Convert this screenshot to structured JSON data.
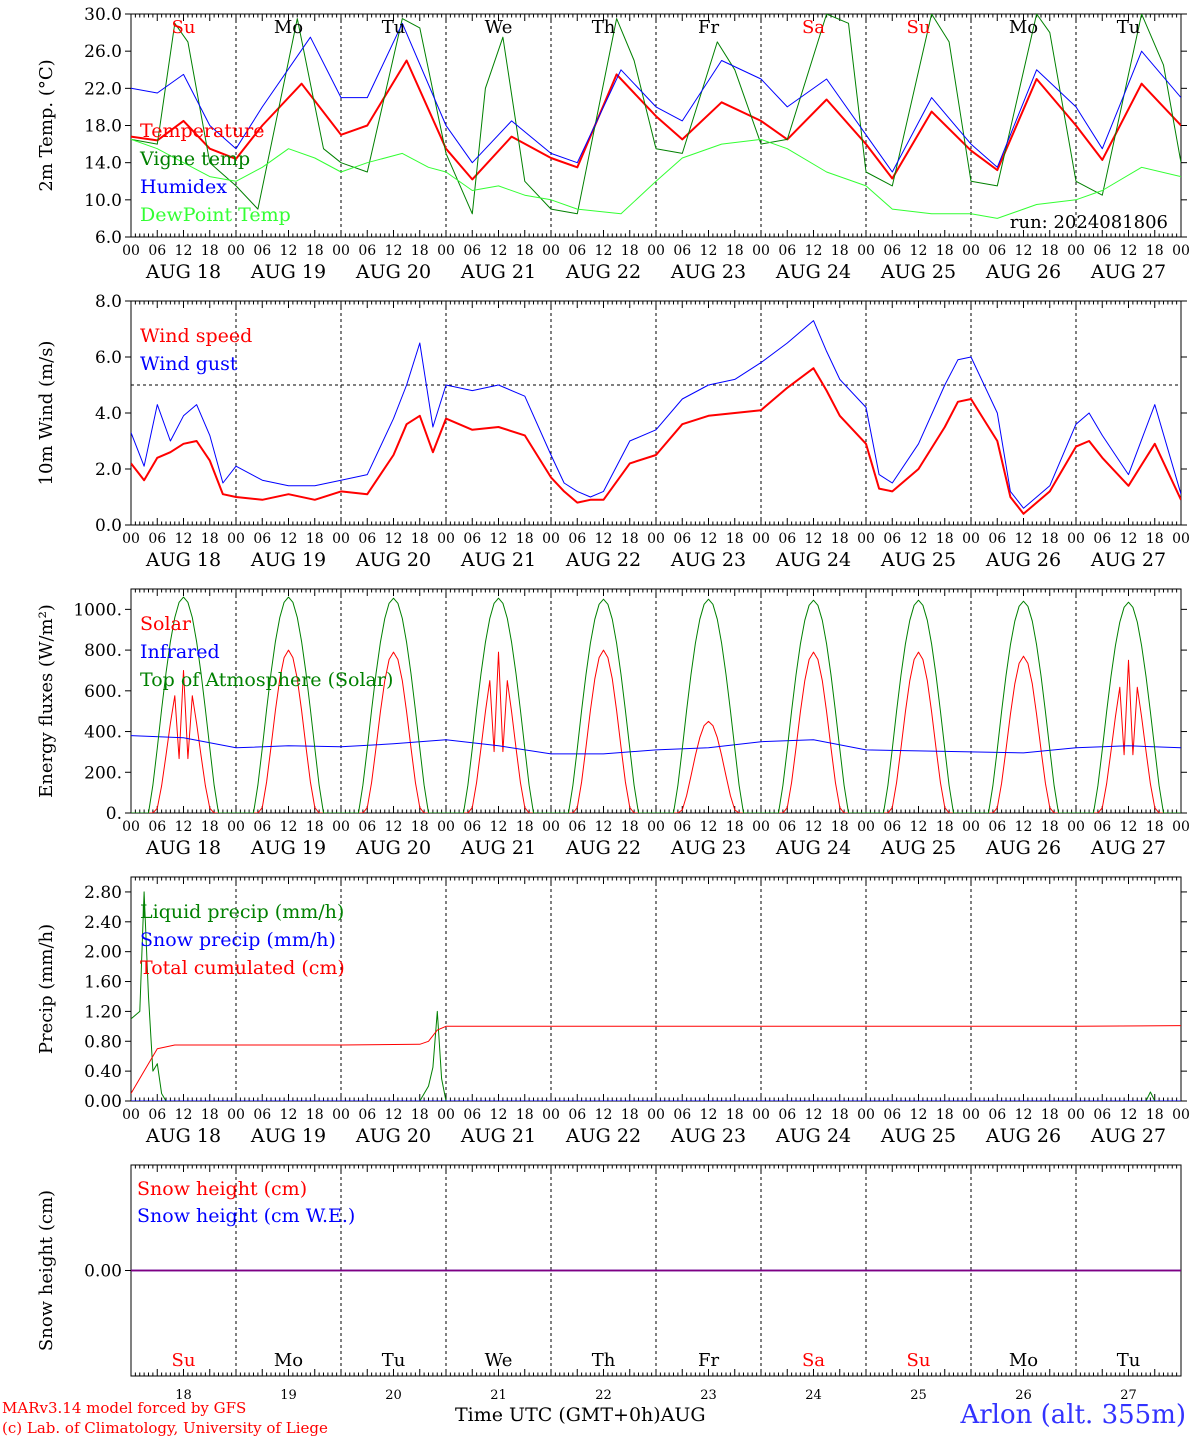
{
  "days": [
    "AUG 18",
    "AUG 19",
    "AUG 20",
    "AUG 21",
    "AUG 22",
    "AUG 23",
    "AUG 24",
    "AUG 25",
    "AUG 26",
    "AUG 27"
  ],
  "weekdays": [
    "Su",
    "Mo",
    "Tu",
    "We",
    "Th",
    "Fr",
    "Sa",
    "Su",
    "Mo",
    "Tu"
  ],
  "weekday_colors": [
    "#ff0000",
    "#000000",
    "#000000",
    "#000000",
    "#000000",
    "#000000",
    "#ff0000",
    "#ff0000",
    "#000000",
    "#000000"
  ],
  "day_numbers": [
    "18",
    "19",
    "20",
    "21",
    "22",
    "23",
    "24",
    "25",
    "26",
    "27"
  ],
  "hour_ticks": [
    "00",
    "06",
    "12",
    "18"
  ],
  "x_axis_title": "Time UTC (GMT+0h)",
  "x_axis_month": "AUG",
  "run_label": "run: 2024081806",
  "footer": {
    "line1": "MARv3.14 model forced by GFS",
    "line2": "(c) Lab. of Climatology, University of Liege"
  },
  "station": "Arlon (alt. 355m)",
  "chart_data": [
    {
      "type": "line",
      "ylabel": "2m Temp. (°C)",
      "ylim": [
        6,
        30
      ],
      "yticks": [
        "6.0",
        "10.0",
        "14.0",
        "18.0",
        "22.0",
        "26.0",
        "30.0"
      ],
      "x_unit": "hours since AUG 18 00 UTC",
      "series": [
        {
          "name": "Temperature",
          "color": "#ff0000",
          "x": [
            0,
            6,
            12,
            18,
            24,
            30,
            39,
            48,
            54,
            63,
            72,
            78,
            87,
            96,
            102,
            111,
            120,
            126,
            135,
            144,
            150,
            159,
            168,
            174,
            183,
            192,
            198,
            207,
            216,
            222,
            231,
            240
          ],
          "values": [
            16.8,
            16.4,
            18.5,
            15.5,
            14.4,
            18.0,
            22.5,
            17.0,
            18.0,
            25.0,
            15.5,
            12.2,
            16.8,
            14.5,
            13.5,
            23.5,
            19.0,
            16.5,
            20.5,
            18.5,
            16.5,
            20.8,
            16.0,
            12.3,
            19.5,
            15.3,
            13.2,
            23.0,
            18.0,
            14.3,
            22.5,
            18.0
          ]
        },
        {
          "name": "Vigne temp",
          "color": "#008000",
          "x": [
            0,
            6,
            10,
            13,
            18,
            24,
            29,
            38,
            44,
            48,
            54,
            62,
            66,
            72,
            78,
            81,
            85,
            90,
            96,
            102,
            111,
            115,
            120,
            126,
            134,
            138,
            144,
            150,
            159,
            164,
            168,
            174,
            183,
            187,
            192,
            198,
            207,
            210,
            216,
            222,
            231,
            236,
            240
          ],
          "values": [
            16.5,
            16.0,
            29.0,
            27.0,
            14.0,
            11.5,
            9.0,
            29.5,
            15.5,
            14.0,
            13.0,
            29.5,
            28.5,
            15.0,
            8.5,
            22.0,
            27.5,
            12.0,
            9.0,
            8.5,
            29.5,
            25.0,
            15.5,
            15.0,
            27.0,
            24.0,
            16.0,
            16.5,
            30.0,
            29.0,
            13.0,
            11.5,
            30.0,
            27.0,
            12.0,
            11.5,
            30.0,
            28.0,
            12.0,
            10.5,
            30.0,
            24.5,
            14.0
          ]
        },
        {
          "name": "Humidex",
          "color": "#0000ff",
          "x": [
            0,
            6,
            12,
            18,
            24,
            30,
            41,
            48,
            54,
            62,
            72,
            78,
            87,
            96,
            102,
            112,
            120,
            126,
            135,
            144,
            150,
            159,
            168,
            174,
            183,
            192,
            198,
            207,
            216,
            222,
            231,
            240
          ],
          "values": [
            22.0,
            21.5,
            23.5,
            18.0,
            15.5,
            20.0,
            27.5,
            21.0,
            21.0,
            29.0,
            18.0,
            14.0,
            18.5,
            15.0,
            14.0,
            24.0,
            20.0,
            18.5,
            25.0,
            23.0,
            20.0,
            23.0,
            17.0,
            13.0,
            21.0,
            16.0,
            13.5,
            24.0,
            20.0,
            15.5,
            26.0,
            21.0
          ]
        },
        {
          "name": "DewPoint Temp",
          "color": "#33ff33",
          "x": [
            0,
            6,
            12,
            18,
            24,
            30,
            36,
            42,
            48,
            54,
            62,
            68,
            72,
            78,
            84,
            90,
            96,
            102,
            112,
            120,
            126,
            135,
            144,
            150,
            159,
            168,
            174,
            183,
            192,
            198,
            207,
            216,
            222,
            231,
            240
          ],
          "values": [
            16.5,
            15.5,
            14.0,
            12.5,
            12.0,
            13.5,
            15.5,
            14.5,
            13.0,
            14.0,
            15.0,
            13.5,
            13.0,
            11.0,
            11.5,
            10.5,
            10.0,
            9.0,
            8.5,
            12.0,
            14.5,
            16.0,
            16.5,
            15.5,
            13.0,
            11.5,
            9.0,
            8.5,
            8.5,
            8.0,
            9.5,
            10.0,
            11.0,
            13.5,
            12.5
          ]
        }
      ]
    },
    {
      "type": "line",
      "ylabel": "10m Wind (m/s)",
      "ylim": [
        0,
        8
      ],
      "yticks": [
        "0.0",
        "2.0",
        "4.0",
        "6.0",
        "8.0"
      ],
      "reference_line": 5,
      "series": [
        {
          "name": "Wind speed",
          "color": "#ff0000",
          "x": [
            0,
            3,
            6,
            9,
            12,
            15,
            18,
            21,
            24,
            30,
            36,
            42,
            48,
            54,
            60,
            63,
            66,
            69,
            72,
            78,
            84,
            90,
            96,
            99,
            102,
            105,
            108,
            114,
            120,
            126,
            132,
            138,
            144,
            150,
            156,
            159,
            162,
            168,
            171,
            174,
            180,
            186,
            189,
            192,
            198,
            201,
            204,
            210,
            216,
            219,
            222,
            228,
            234,
            240
          ],
          "values": [
            2.2,
            1.6,
            2.4,
            2.6,
            2.9,
            3.0,
            2.3,
            1.1,
            1.0,
            0.9,
            1.1,
            0.9,
            1.2,
            1.1,
            2.5,
            3.6,
            3.9,
            2.6,
            3.8,
            3.4,
            3.5,
            3.2,
            1.7,
            1.2,
            0.8,
            0.9,
            0.9,
            2.2,
            2.5,
            3.6,
            3.9,
            4.0,
            4.1,
            4.9,
            5.6,
            4.8,
            3.9,
            2.9,
            1.3,
            1.2,
            2.0,
            3.5,
            4.4,
            4.5,
            3.0,
            1.0,
            0.4,
            1.2,
            2.8,
            3.0,
            2.4,
            1.4,
            2.9,
            0.9
          ]
        },
        {
          "name": "Wind gust",
          "color": "#0000ff",
          "x": [
            0,
            3,
            6,
            9,
            12,
            15,
            18,
            21,
            24,
            30,
            36,
            42,
            48,
            54,
            60,
            63,
            66,
            69,
            72,
            78,
            84,
            90,
            96,
            99,
            102,
            105,
            108,
            114,
            120,
            126,
            132,
            138,
            144,
            150,
            156,
            159,
            162,
            168,
            171,
            174,
            180,
            186,
            189,
            192,
            198,
            201,
            204,
            210,
            216,
            219,
            222,
            228,
            234,
            240
          ],
          "values": [
            3.3,
            2.1,
            4.3,
            3.0,
            3.9,
            4.3,
            3.2,
            1.5,
            2.1,
            1.6,
            1.4,
            1.4,
            1.6,
            1.8,
            3.8,
            5.0,
            6.5,
            3.5,
            5.0,
            4.8,
            5.0,
            4.6,
            2.5,
            1.5,
            1.2,
            1.0,
            1.2,
            3.0,
            3.4,
            4.5,
            5.0,
            5.2,
            5.8,
            6.5,
            7.3,
            6.2,
            5.2,
            4.2,
            1.8,
            1.5,
            2.9,
            5.0,
            5.9,
            6.0,
            4.0,
            1.2,
            0.6,
            1.4,
            3.6,
            4.0,
            3.2,
            1.8,
            4.3,
            1.1
          ]
        }
      ]
    },
    {
      "type": "line",
      "ylabel": "Energy fluxes (W/m²)",
      "ylim": [
        0,
        1100
      ],
      "yticks": [
        "0.",
        "200.",
        "400.",
        "600.",
        "800.",
        "1000."
      ],
      "series": [
        {
          "name": "Solar",
          "color": "#ff0000",
          "diurnal_peaks": [
            700,
            800,
            790,
            790,
            800,
            450,
            790,
            790,
            770,
            750
          ]
        },
        {
          "name": "Infrared",
          "color": "#0000ff",
          "x": [
            0,
            12,
            24,
            36,
            48,
            60,
            72,
            84,
            96,
            108,
            120,
            132,
            144,
            156,
            168,
            180,
            192,
            204,
            216,
            228,
            240
          ],
          "values": [
            380,
            370,
            320,
            330,
            325,
            340,
            360,
            330,
            290,
            290,
            310,
            320,
            350,
            360,
            310,
            305,
            300,
            295,
            320,
            330,
            320
          ]
        },
        {
          "name": "Top of Atmosphere (Solar)",
          "color": "#008000",
          "diurnal_peaks": [
            1060,
            1060,
            1055,
            1055,
            1050,
            1050,
            1045,
            1045,
            1040,
            1035
          ]
        }
      ]
    },
    {
      "type": "line",
      "ylabel": "Precip (mm/h)",
      "ylim": [
        0,
        3.0
      ],
      "yticks": [
        "0.00",
        "0.40",
        "0.80",
        "1.20",
        "1.60",
        "2.00",
        "2.40",
        "2.80"
      ],
      "series": [
        {
          "name": "Liquid precip (mm/h)",
          "color": "#008000",
          "x": [
            0,
            2,
            3,
            4,
            5,
            6,
            7,
            8,
            9,
            10,
            24,
            48,
            66,
            68,
            69,
            70,
            71,
            72,
            232,
            233,
            234,
            235,
            240
          ],
          "values": [
            1.1,
            1.2,
            2.8,
            1.4,
            0.4,
            0.5,
            0.1,
            0.0,
            0.0,
            0.0,
            0.0,
            0.0,
            0.0,
            0.2,
            0.45,
            1.2,
            0.3,
            0.0,
            0.0,
            0.12,
            0.0,
            0.0,
            0.0
          ]
        },
        {
          "name": "Snow precip (mm/h)",
          "color": "#0000ff",
          "x": [
            0,
            240
          ],
          "values": [
            0,
            0
          ]
        },
        {
          "name": "Total cumulated (cm)",
          "color": "#ff0000",
          "x": [
            0,
            3,
            6,
            10,
            24,
            48,
            66,
            68,
            70,
            72,
            120,
            168,
            216,
            240
          ],
          "values": [
            0.1,
            0.4,
            0.7,
            0.75,
            0.75,
            0.75,
            0.76,
            0.8,
            0.95,
            1.0,
            1.0,
            1.0,
            1.0,
            1.01
          ]
        }
      ]
    },
    {
      "type": "line",
      "ylabel": "Snow height (cm)",
      "yticks": [
        "0.00"
      ],
      "series": [
        {
          "name": "Snow height (cm)",
          "color": "#ff0000",
          "x": [
            0,
            240
          ],
          "values": [
            0,
            0
          ]
        },
        {
          "name": "Snow height (cm W.E.)",
          "color": "#0000ff",
          "x": [
            0,
            240
          ],
          "values": [
            0,
            0
          ]
        }
      ]
    }
  ]
}
